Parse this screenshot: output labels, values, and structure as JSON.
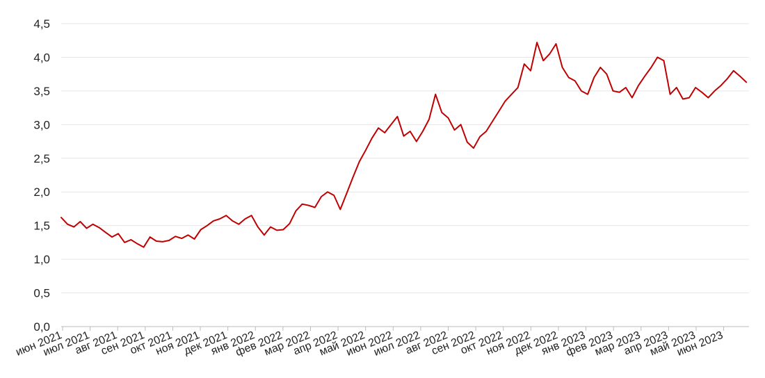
{
  "chart_data": {
    "type": "line",
    "title": "",
    "xlabel": "",
    "ylabel": "",
    "ylim": [
      0,
      4.5
    ],
    "y_ticks": [
      "0,0",
      "0,5",
      "1,0",
      "1,5",
      "2,0",
      "2,5",
      "3,0",
      "3,5",
      "4,0",
      "4,5"
    ],
    "x_ticks": [
      "июн 2021",
      "июл 2021",
      "авг 2021",
      "сен 2021",
      "окт 2021",
      "ноя 2021",
      "дек 2021",
      "янв 2022",
      "фев 2022",
      "мар 2022",
      "апр 2022",
      "май 2022",
      "июн 2022",
      "июл 2022",
      "авг 2022",
      "сен 2022",
      "окт 2022",
      "ноя 2022",
      "дек 2022",
      "янв 2023",
      "фев 2023",
      "мар 2023",
      "апр 2023",
      "май 2023",
      "июн 2023"
    ],
    "grid": true,
    "line_color": "#c00000",
    "series": [
      {
        "x": [
          "2021-06-01",
          "2021-06-08",
          "2021-06-15",
          "2021-06-22",
          "2021-06-29",
          "2021-07-06",
          "2021-07-13",
          "2021-07-20",
          "2021-07-27",
          "2021-08-03",
          "2021-08-10",
          "2021-08-17",
          "2021-08-24",
          "2021-08-31",
          "2021-09-07",
          "2021-09-14",
          "2021-09-21",
          "2021-09-28",
          "2021-10-05",
          "2021-10-12",
          "2021-10-19",
          "2021-10-26",
          "2021-11-02",
          "2021-11-09",
          "2021-11-16",
          "2021-11-23",
          "2021-11-30",
          "2021-12-07",
          "2021-12-14",
          "2021-12-21",
          "2021-12-28",
          "2022-01-04",
          "2022-01-11",
          "2022-01-18",
          "2022-01-25",
          "2022-02-01",
          "2022-02-08",
          "2022-02-15",
          "2022-02-22",
          "2022-03-01",
          "2022-03-08",
          "2022-03-15",
          "2022-03-22",
          "2022-03-29",
          "2022-04-05",
          "2022-04-12",
          "2022-04-19",
          "2022-04-26",
          "2022-05-03",
          "2022-05-10",
          "2022-05-17",
          "2022-05-24",
          "2022-05-31",
          "2022-06-07",
          "2022-06-14",
          "2022-06-21",
          "2022-06-28",
          "2022-07-05",
          "2022-07-12",
          "2022-07-19",
          "2022-07-26",
          "2022-08-02",
          "2022-08-09",
          "2022-08-16",
          "2022-08-23",
          "2022-08-30",
          "2022-09-06",
          "2022-09-13",
          "2022-09-20",
          "2022-09-27",
          "2022-10-04",
          "2022-10-11",
          "2022-10-18",
          "2022-10-25",
          "2022-11-01",
          "2022-11-08",
          "2022-11-15",
          "2022-11-22",
          "2022-11-29",
          "2022-12-06",
          "2022-12-13",
          "2022-12-20",
          "2022-12-27",
          "2023-01-03",
          "2023-01-10",
          "2023-01-17",
          "2023-01-24",
          "2023-01-31",
          "2023-02-07",
          "2023-02-14",
          "2023-02-21",
          "2023-02-28",
          "2023-03-07",
          "2023-03-14",
          "2023-03-21",
          "2023-03-28",
          "2023-04-04",
          "2023-04-11",
          "2023-04-18",
          "2023-04-25",
          "2023-05-02",
          "2023-05-09",
          "2023-05-16",
          "2023-05-23",
          "2023-05-30",
          "2023-06-06",
          "2023-06-13",
          "2023-06-20",
          "2023-06-27"
        ],
        "values": [
          1.62,
          1.52,
          1.48,
          1.56,
          1.46,
          1.52,
          1.47,
          1.4,
          1.33,
          1.38,
          1.25,
          1.29,
          1.23,
          1.18,
          1.33,
          1.27,
          1.26,
          1.28,
          1.34,
          1.31,
          1.36,
          1.3,
          1.44,
          1.5,
          1.57,
          1.6,
          1.65,
          1.57,
          1.52,
          1.6,
          1.65,
          1.48,
          1.36,
          1.48,
          1.43,
          1.44,
          1.53,
          1.72,
          1.82,
          1.8,
          1.77,
          1.93,
          2.0,
          1.95,
          1.74,
          1.98,
          2.22,
          2.45,
          2.62,
          2.8,
          2.95,
          2.88,
          3.0,
          3.12,
          2.83,
          2.9,
          2.75,
          2.9,
          3.08,
          3.45,
          3.18,
          3.1,
          2.92,
          3.0,
          2.74,
          2.65,
          2.82,
          2.9,
          3.05,
          3.2,
          3.35,
          3.45,
          3.55,
          3.9,
          3.8,
          4.22,
          3.95,
          4.05,
          4.2,
          3.85,
          3.7,
          3.65,
          3.5,
          3.45,
          3.7,
          3.85,
          3.75,
          3.5,
          3.48,
          3.55,
          3.4,
          3.58,
          3.72,
          3.85,
          4.0,
          3.95,
          3.45,
          3.55,
          3.38,
          3.4,
          3.55,
          3.48,
          3.4,
          3.5,
          3.58,
          3.68,
          3.8,
          3.72,
          3.63
        ]
      }
    ]
  }
}
